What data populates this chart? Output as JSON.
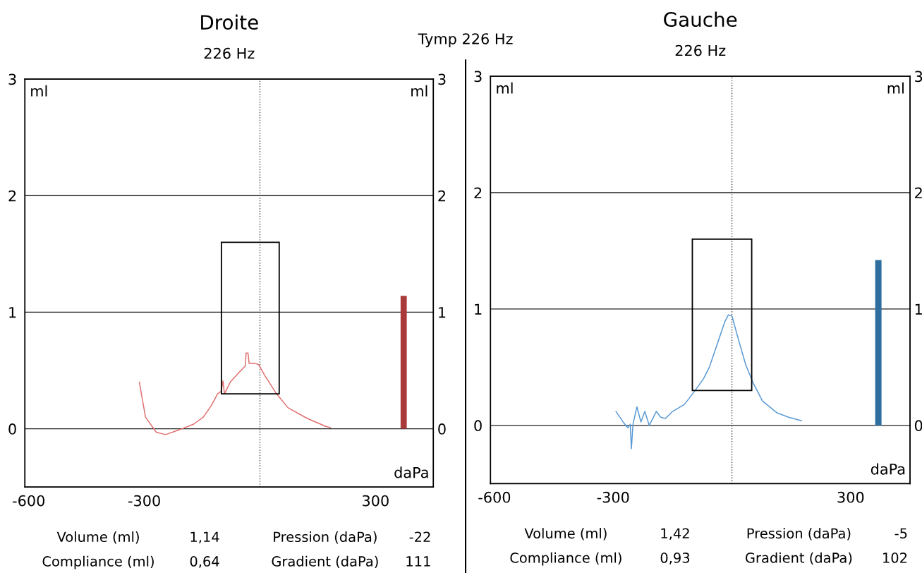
{
  "chart_data": [
    {
      "type": "line",
      "title": "Droite",
      "subtitle": "226 Hz",
      "xlabel": "daPa",
      "ylabel": "ml",
      "y2label": "ml",
      "xlim": [
        -610,
        450
      ],
      "xticks": [
        -600,
        -300,
        300
      ],
      "ylim": [
        -0.5,
        3
      ],
      "yticks": [
        0,
        1,
        2,
        3
      ],
      "y2lim": [
        -0.5,
        3
      ],
      "y2ticks": [
        0,
        1,
        2,
        3
      ],
      "grid": "y",
      "ref_lines": [
        {
          "axis": "x",
          "value": 0,
          "color": "#444444",
          "line_style": "dotted"
        }
      ],
      "series": [
        {
          "color": "#e07070",
          "x": [
            -313,
            -297,
            -269,
            -245,
            -202,
            -172,
            -147,
            -126,
            -110,
            -101,
            -96,
            -92,
            -77,
            -55,
            -38,
            -36,
            -31,
            -28,
            -12,
            -3,
            12,
            43,
            73,
            122,
            171,
            183
          ],
          "values": [
            0.4,
            0.1,
            -0.03,
            -0.05,
            0.0,
            0.04,
            0.1,
            0.2,
            0.3,
            0.32,
            0.41,
            0.3,
            0.4,
            0.48,
            0.54,
            0.65,
            0.65,
            0.56,
            0.56,
            0.55,
            0.46,
            0.3,
            0.18,
            0.09,
            0.02,
            0.01
          ]
        },
        {
          "type": "bar",
          "color": "#000000",
          "x": [
            -25
          ],
          "base": [
            0.3
          ],
          "values": [
            1.3
          ]
        },
        {
          "type": "bar",
          "color": "#a83a3a",
          "x": [
            373
          ],
          "values": [
            1.14
          ]
        }
      ],
      "annotations": [
        "Tymp 226 Hz",
        "Volume (ml)",
        "1,14",
        "Pression (daPa)",
        "-22",
        "Compliance (ml)",
        "0,64",
        "Gradient (daPa)",
        "111"
      ]
    },
    {
      "type": "line",
      "title": "Gauche",
      "subtitle": "226 Hz",
      "xlabel": "daPa",
      "ylabel": "ml",
      "y2label": "ml",
      "xlim": [
        -610,
        450
      ],
      "xticks": [
        -600,
        -300,
        300
      ],
      "ylim": [
        -0.5,
        3
      ],
      "yticks": [
        0,
        1,
        2,
        3
      ],
      "y2lim": [
        -0.5,
        3
      ],
      "y2ticks": [
        0,
        1,
        2,
        3
      ],
      "grid": "y",
      "ref_lines": [
        {
          "axis": "x",
          "value": 0,
          "color": "#444444",
          "line_style": "dotted"
        }
      ],
      "series": [
        {
          "color": "#5a9ad5",
          "x": [
            -293,
            -275,
            -263,
            -257,
            -254,
            -250,
            -240,
            -230,
            -220,
            -209,
            -191,
            -180,
            -168,
            -150,
            -120,
            -93,
            -72,
            -57,
            -36,
            -18,
            -9,
            0,
            18,
            35,
            53,
            77,
            113,
            143,
            176
          ],
          "values": [
            0.12,
            0.03,
            -0.02,
            0.01,
            -0.2,
            0.01,
            0.16,
            0.03,
            0.12,
            0.0,
            0.12,
            0.07,
            0.06,
            0.12,
            0.18,
            0.3,
            0.4,
            0.5,
            0.71,
            0.89,
            0.95,
            0.94,
            0.72,
            0.52,
            0.37,
            0.21,
            0.11,
            0.07,
            0.04
          ]
        },
        {
          "type": "bar",
          "color": "#000000",
          "x": [
            -25
          ],
          "base": [
            0.3
          ],
          "values": [
            1.3
          ]
        },
        {
          "type": "bar",
          "color": "#2f6f9f",
          "x": [
            370
          ],
          "values": [
            1.42
          ]
        }
      ],
      "annotations": [
        "Volume (ml)",
        "1,42",
        "Pression (daPa)",
        "-5",
        "Compliance (ml)",
        "0,93",
        "Gradient (daPa)",
        "102"
      ]
    }
  ]
}
